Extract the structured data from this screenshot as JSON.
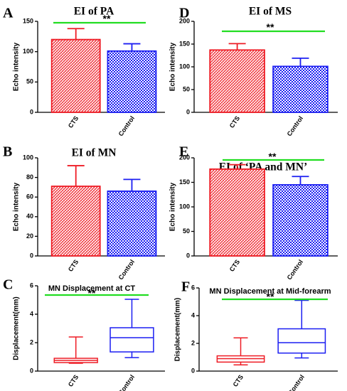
{
  "colors": {
    "cts": "#ee1c25",
    "control": "#1b1ef2",
    "significance": "#22dd22"
  },
  "chart_data": [
    {
      "panel": "A",
      "type": "bar",
      "title": "EI of PA",
      "title_style": "serif",
      "categories": [
        "CTS",
        "Control"
      ],
      "values": [
        120,
        101
      ],
      "errors": [
        18,
        12
      ],
      "ylabel": "Echo intensity",
      "ylim": [
        0,
        150
      ],
      "yticks": [
        0,
        50,
        100,
        150
      ],
      "significance": "**"
    },
    {
      "panel": "D",
      "type": "bar",
      "title": "EI of MS",
      "title_style": "serif",
      "categories": [
        "CTS",
        "Control"
      ],
      "values": [
        137,
        101
      ],
      "errors": [
        14,
        18
      ],
      "ylabel": "Echo intensity",
      "ylim": [
        0,
        200
      ],
      "yticks": [
        0,
        50,
        100,
        150,
        200
      ],
      "significance": "**"
    },
    {
      "panel": "B",
      "type": "bar",
      "title": "EI of MN",
      "title_style": "serif",
      "categories": [
        "CTS",
        "Control"
      ],
      "values": [
        71,
        66
      ],
      "errors": [
        21,
        12
      ],
      "ylabel": "Echo intensity",
      "ylim": [
        0,
        100
      ],
      "yticks": [
        0,
        20,
        40,
        60,
        80,
        100
      ],
      "significance": ""
    },
    {
      "panel": "E",
      "type": "bar",
      "title": "EI of ‘PA and MN’",
      "title_style": "serif",
      "categories": [
        "CTS",
        "Control"
      ],
      "values": [
        177,
        145
      ],
      "errors": [
        9,
        17
      ],
      "ylabel": "Echo intensity",
      "ylim": [
        0,
        200
      ],
      "yticks": [
        0,
        50,
        100,
        150,
        200
      ],
      "significance": "**"
    },
    {
      "panel": "C",
      "type": "box",
      "title": "MN Displacement at CT",
      "title_style": "sans",
      "categories": [
        "CTS",
        "Control"
      ],
      "boxes": [
        {
          "min": 0.55,
          "q1": 0.6,
          "median": 0.75,
          "q3": 0.9,
          "max": 2.4
        },
        {
          "min": 0.95,
          "q1": 1.35,
          "median": 2.35,
          "q3": 3.05,
          "max": 5.05
        }
      ],
      "ylabel": "Displacement(mm)",
      "ylim": [
        0,
        6
      ],
      "yticks": [
        0,
        2,
        4,
        6
      ],
      "significance": "**"
    },
    {
      "panel": "F",
      "type": "box",
      "title": "MN Displacement at Mid-forearm",
      "title_style": "sans",
      "categories": [
        "CTS",
        "Control"
      ],
      "boxes": [
        {
          "min": 0.45,
          "q1": 0.65,
          "median": 0.9,
          "q3": 1.1,
          "max": 2.4
        },
        {
          "min": 0.95,
          "q1": 1.3,
          "median": 2.05,
          "q3": 3.05,
          "max": 5.1
        }
      ],
      "ylabel": "Displacement(mm)",
      "ylim": [
        0,
        6
      ],
      "yticks": [
        0,
        2,
        4,
        6
      ],
      "significance": "**"
    }
  ]
}
